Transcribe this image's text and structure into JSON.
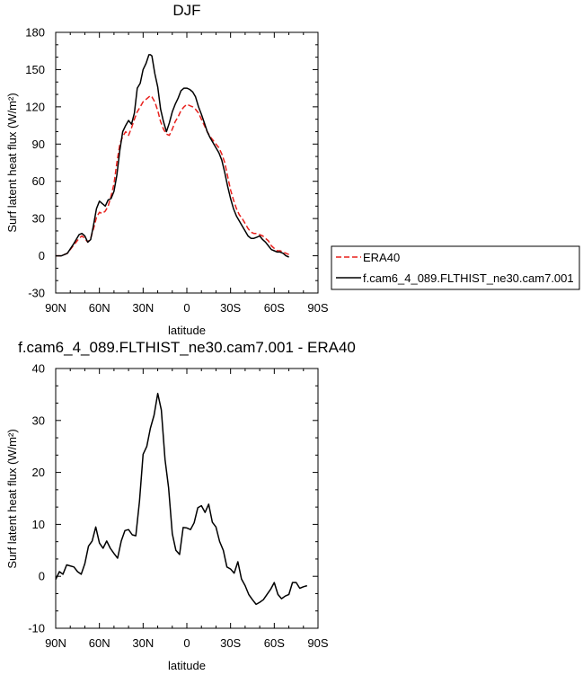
{
  "chart_data": [
    {
      "type": "line",
      "title": "DJF",
      "xlabel": "latitude",
      "ylabel": "Surf latent heat flux (W/m²)",
      "xlim": [
        90,
        -90
      ],
      "ylim": [
        -30,
        180
      ],
      "xticks": [
        {
          "value": 90,
          "label": "90N"
        },
        {
          "value": 60,
          "label": "60N"
        },
        {
          "value": 30,
          "label": "30N"
        },
        {
          "value": 0,
          "label": "0"
        },
        {
          "value": -30,
          "label": "30S"
        },
        {
          "value": -60,
          "label": "60S"
        },
        {
          "value": -90,
          "label": "90S"
        }
      ],
      "yticks": [
        -30,
        0,
        30,
        60,
        90,
        120,
        150,
        180
      ],
      "legend_position": "right",
      "series": [
        {
          "name": "ERA40",
          "color": "#e8201c",
          "dash": "dashed",
          "points": [
            [
              90,
              0
            ],
            [
              86,
              0
            ],
            [
              82,
              2
            ],
            [
              78,
              8
            ],
            [
              74,
              14
            ],
            [
              72,
              16
            ],
            [
              70,
              14
            ],
            [
              68,
              11
            ],
            [
              66,
              14
            ],
            [
              64,
              22
            ],
            [
              62,
              31
            ],
            [
              60,
              35
            ],
            [
              58,
              34
            ],
            [
              56,
              36
            ],
            [
              54,
              40
            ],
            [
              52,
              48
            ],
            [
              50,
              58
            ],
            [
              48,
              75
            ],
            [
              46,
              90
            ],
            [
              44,
              96
            ],
            [
              42,
              100
            ],
            [
              40,
              97
            ],
            [
              38,
              103
            ],
            [
              36,
              110
            ],
            [
              34,
              116
            ],
            [
              32,
              120
            ],
            [
              30,
              124
            ],
            [
              28,
              126
            ],
            [
              26,
              128
            ],
            [
              25,
              129
            ],
            [
              24,
              128
            ],
            [
              22,
              124
            ],
            [
              20,
              117
            ],
            [
              18,
              108
            ],
            [
              16,
              102
            ],
            [
              14,
              98
            ],
            [
              12,
              97
            ],
            [
              10,
              102
            ],
            [
              8,
              108
            ],
            [
              6,
              112
            ],
            [
              4,
              117
            ],
            [
              2,
              120
            ],
            [
              0,
              122
            ],
            [
              -2,
              121
            ],
            [
              -4,
              120
            ],
            [
              -6,
              118
            ],
            [
              -8,
              115
            ],
            [
              -10,
              110
            ],
            [
              -12,
              105
            ],
            [
              -14,
              100
            ],
            [
              -16,
              96
            ],
            [
              -18,
              93
            ],
            [
              -20,
              90
            ],
            [
              -22,
              87
            ],
            [
              -24,
              82
            ],
            [
              -26,
              75
            ],
            [
              -28,
              64
            ],
            [
              -30,
              53
            ],
            [
              -32,
              45
            ],
            [
              -34,
              38
            ],
            [
              -36,
              33
            ],
            [
              -38,
              30
            ],
            [
              -40,
              26
            ],
            [
              -42,
              22
            ],
            [
              -44,
              19
            ],
            [
              -46,
              18
            ],
            [
              -48,
              18
            ],
            [
              -50,
              17
            ],
            [
              -52,
              16
            ],
            [
              -54,
              14
            ],
            [
              -56,
              12
            ],
            [
              -58,
              8
            ],
            [
              -60,
              6
            ],
            [
              -62,
              4
            ],
            [
              -64,
              4
            ],
            [
              -66,
              3
            ],
            [
              -68,
              2
            ],
            [
              -70,
              1
            ]
          ]
        },
        {
          "name": "f.cam6_4_089.FLTHIST_ne30.cam7.001",
          "color": "#000000",
          "dash": "solid",
          "points": [
            [
              90,
              0
            ],
            [
              86,
              0
            ],
            [
              82,
              2
            ],
            [
              78,
              9
            ],
            [
              74,
              17
            ],
            [
              72,
              18
            ],
            [
              70,
              16
            ],
            [
              68,
              11
            ],
            [
              66,
              13
            ],
            [
              64,
              25
            ],
            [
              62,
              38
            ],
            [
              60,
              44
            ],
            [
              58,
              42
            ],
            [
              56,
              40
            ],
            [
              54,
              45
            ],
            [
              52,
              46
            ],
            [
              50,
              52
            ],
            [
              48,
              65
            ],
            [
              46,
              85
            ],
            [
              44,
              100
            ],
            [
              42,
              105
            ],
            [
              40,
              109
            ],
            [
              38,
              106
            ],
            [
              36,
              115
            ],
            [
              34,
              135
            ],
            [
              32,
              139
            ],
            [
              30,
              150
            ],
            [
              28,
              155
            ],
            [
              26,
              162
            ],
            [
              25,
              162
            ],
            [
              24,
              161
            ],
            [
              22,
              147
            ],
            [
              20,
              136
            ],
            [
              18,
              118
            ],
            [
              16,
              108
            ],
            [
              14,
              100
            ],
            [
              12,
              107
            ],
            [
              10,
              116
            ],
            [
              8,
              122
            ],
            [
              6,
              127
            ],
            [
              4,
              133
            ],
            [
              2,
              135
            ],
            [
              0,
              135
            ],
            [
              -2,
              134
            ],
            [
              -4,
              132
            ],
            [
              -6,
              128
            ],
            [
              -8,
              120
            ],
            [
              -10,
              114
            ],
            [
              -12,
              107
            ],
            [
              -14,
              100
            ],
            [
              -16,
              95
            ],
            [
              -18,
              91
            ],
            [
              -20,
              87
            ],
            [
              -22,
              83
            ],
            [
              -24,
              77
            ],
            [
              -26,
              67
            ],
            [
              -28,
              56
            ],
            [
              -30,
              46
            ],
            [
              -32,
              38
            ],
            [
              -34,
              32
            ],
            [
              -36,
              28
            ],
            [
              -38,
              24
            ],
            [
              -40,
              20
            ],
            [
              -42,
              16
            ],
            [
              -44,
              14
            ],
            [
              -46,
              14
            ],
            [
              -48,
              15
            ],
            [
              -50,
              16
            ],
            [
              -52,
              13
            ],
            [
              -54,
              11
            ],
            [
              -56,
              8
            ],
            [
              -58,
              5
            ],
            [
              -60,
              4
            ],
            [
              -62,
              3
            ],
            [
              -64,
              3
            ],
            [
              -66,
              2
            ],
            [
              -68,
              0
            ],
            [
              -70,
              -1
            ]
          ]
        }
      ]
    },
    {
      "type": "line",
      "title": "f.cam6_4_089.FLTHIST_ne30.cam7.001 - ERA40",
      "xlabel": "latitude",
      "ylabel": "Surf latent heat flux (W/m²)",
      "xlim": [
        90,
        -90
      ],
      "ylim": [
        -10,
        40
      ],
      "xticks": [
        {
          "value": 90,
          "label": "90N"
        },
        {
          "value": 60,
          "label": "60N"
        },
        {
          "value": 30,
          "label": "30N"
        },
        {
          "value": 0,
          "label": "0"
        },
        {
          "value": -30,
          "label": "30S"
        },
        {
          "value": -60,
          "label": "60S"
        },
        {
          "value": -90,
          "label": "90S"
        }
      ],
      "yticks": [
        -10,
        0,
        10,
        20,
        30,
        40
      ],
      "series": [
        {
          "color": "#000000",
          "dash": "solid",
          "points": [
            [
              90,
              -0.6
            ],
            [
              87.5,
              0.9
            ],
            [
              85,
              0.4
            ],
            [
              82.5,
              2.2
            ],
            [
              80,
              2.0
            ],
            [
              77.5,
              1.8
            ],
            [
              75,
              0.9
            ],
            [
              72.5,
              0.4
            ],
            [
              70,
              2.4
            ],
            [
              67.5,
              5.8
            ],
            [
              65,
              6.8
            ],
            [
              62.5,
              9.5
            ],
            [
              60,
              6.4
            ],
            [
              57.5,
              5.4
            ],
            [
              55,
              6.8
            ],
            [
              52.5,
              5.4
            ],
            [
              50,
              4.4
            ],
            [
              47.5,
              3.5
            ],
            [
              45,
              6.8
            ],
            [
              42.5,
              8.8
            ],
            [
              40,
              9.0
            ],
            [
              37.5,
              8.0
            ],
            [
              35,
              7.8
            ],
            [
              32.5,
              14.5
            ],
            [
              30,
              23.5
            ],
            [
              27.5,
              25.0
            ],
            [
              25,
              28.5
            ],
            [
              22.5,
              31.0
            ],
            [
              20,
              35.2
            ],
            [
              17.5,
              32.0
            ],
            [
              15,
              22.5
            ],
            [
              12.5,
              17.0
            ],
            [
              10,
              8.2
            ],
            [
              7.5,
              5.0
            ],
            [
              5,
              4.2
            ],
            [
              2.5,
              9.4
            ],
            [
              0,
              9.3
            ],
            [
              -2.5,
              9.0
            ],
            [
              -5,
              10.3
            ],
            [
              -7.5,
              13.2
            ],
            [
              -10,
              13.6
            ],
            [
              -12.5,
              12.3
            ],
            [
              -15,
              13.9
            ],
            [
              -17.5,
              10.4
            ],
            [
              -20,
              9.5
            ],
            [
              -22.5,
              6.7
            ],
            [
              -25,
              5.0
            ],
            [
              -27.5,
              1.8
            ],
            [
              -30,
              1.4
            ],
            [
              -32.5,
              0.6
            ],
            [
              -35,
              2.8
            ],
            [
              -37.5,
              -0.5
            ],
            [
              -40,
              -1.8
            ],
            [
              -42.5,
              -3.5
            ],
            [
              -45,
              -4.5
            ],
            [
              -47.5,
              -5.4
            ],
            [
              -50,
              -5.0
            ],
            [
              -52.5,
              -4.5
            ],
            [
              -55,
              -3.5
            ],
            [
              -57.5,
              -2.5
            ],
            [
              -60,
              -1.2
            ],
            [
              -62.5,
              -3.5
            ],
            [
              -65,
              -4.3
            ],
            [
              -67.5,
              -3.8
            ],
            [
              -70,
              -3.5
            ],
            [
              -72.5,
              -1.2
            ],
            [
              -75,
              -1.2
            ],
            [
              -77.5,
              -2.3
            ],
            [
              -80,
              -2.0
            ],
            [
              -82.5,
              -1.8
            ]
          ]
        }
      ]
    }
  ]
}
